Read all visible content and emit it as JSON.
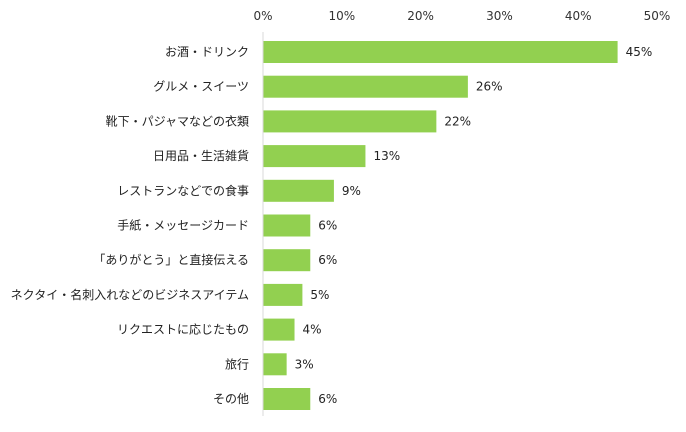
{
  "chart_data": {
    "type": "bar",
    "orientation": "horizontal",
    "categories": [
      "お酒・ドリンク",
      "グルメ・スイーツ",
      "靴下・パジャマなどの衣類",
      "日用品・生活雑貨",
      "レストランなどでの食事",
      "手紙・メッセージカード",
      "「ありがとう」と直接伝える",
      "ネクタイ・名刺入れなどのビジネスアイテム",
      "リクエストに応じたもの",
      "旅行",
      "その他"
    ],
    "values": [
      45,
      26,
      22,
      13,
      9,
      6,
      6,
      5,
      4,
      3,
      6
    ],
    "value_labels": [
      "45%",
      "26%",
      "22%",
      "13%",
      "9%",
      "6%",
      "6%",
      "5%",
      "4%",
      "3%",
      "6%"
    ],
    "xlim": [
      0,
      50
    ],
    "x_ticks": [
      0,
      10,
      20,
      30,
      40,
      50
    ],
    "x_tick_labels": [
      "0%",
      "10%",
      "20%",
      "30%",
      "40%",
      "50%"
    ],
    "x_axis_position": "top",
    "grid": false,
    "legend": "none",
    "colors": {
      "bar": "#92d050",
      "text": "#222222",
      "axis": "#d9d9d9"
    }
  }
}
